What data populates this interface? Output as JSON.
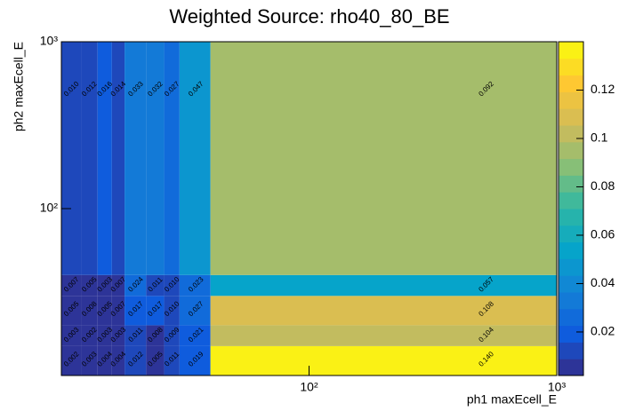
{
  "chart_data": {
    "type": "heatmap",
    "title": "Weighted Source: rho40_80_BE",
    "x_label": "ph1 maxEcell_E",
    "y_label": "ph2 maxEcell_E",
    "xbins": [
      10,
      12,
      14,
      16,
      18,
      22,
      26,
      30,
      40,
      1000
    ],
    "ybins": [
      10,
      15,
      20,
      30,
      40,
      1000
    ],
    "values": [
      [
        0.002,
        0.003,
        0.004,
        0.004,
        0.012,
        0.005,
        0.011,
        0.019,
        0.14
      ],
      [
        0.003,
        0.002,
        0.003,
        0.003,
        0.011,
        0.008,
        0.009,
        0.021,
        0.104
      ],
      [
        0.005,
        0.008,
        0.005,
        0.007,
        0.017,
        0.017,
        0.01,
        0.027,
        0.108
      ],
      [
        0.007,
        0.005,
        0.003,
        0.007,
        0.024,
        0.011,
        0.01,
        0.023,
        0.057
      ],
      [
        0.01,
        0.012,
        0.016,
        0.014,
        0.033,
        0.032,
        0.027,
        0.047,
        0.092
      ]
    ],
    "value_labels": [
      [
        "0.002",
        "0.003",
        "0.004",
        "0.004",
        "0.012",
        "0.005",
        "0.011",
        "0.019",
        "0.140"
      ],
      [
        "0.003",
        "0.002",
        "0.003",
        "0.003",
        "0.011",
        "0.008",
        "0.009",
        "0.021",
        "0.104"
      ],
      [
        "0.005",
        "0.008",
        "0.005",
        "0.007",
        "0.017",
        "0.017",
        "0.010",
        "0.027",
        "0.108"
      ],
      [
        "0.007",
        "0.005",
        "0.003",
        "0.007",
        "0.024",
        "0.011",
        "0.010",
        "0.023",
        "0.057"
      ],
      [
        "0.010",
        "0.012",
        "0.016",
        "0.014",
        "0.033",
        "0.032",
        "0.027",
        "0.047",
        "0.092"
      ]
    ],
    "xlim": [
      10,
      1000
    ],
    "ylim": [
      10,
      1000
    ],
    "xlog": true,
    "ylog": true,
    "xticks": [
      {
        "value": 100,
        "label": "10²"
      },
      {
        "value": 1000,
        "label": "10³"
      }
    ],
    "yticks": [
      {
        "value": 100,
        "label": "10²"
      },
      {
        "value": 1000,
        "label": "10³"
      }
    ],
    "zlim": [
      0.002,
      0.14
    ],
    "zticks": [
      0.02,
      0.04,
      0.06,
      0.08,
      0.1,
      0.12
    ],
    "levels": 20,
    "palette": [
      "#352a87",
      "#0f5cdd",
      "#1481d6",
      "#06a4ca",
      "#2eb7a4",
      "#87bf77",
      "#d1bb59",
      "#fec832",
      "#f9fb0e"
    ]
  }
}
